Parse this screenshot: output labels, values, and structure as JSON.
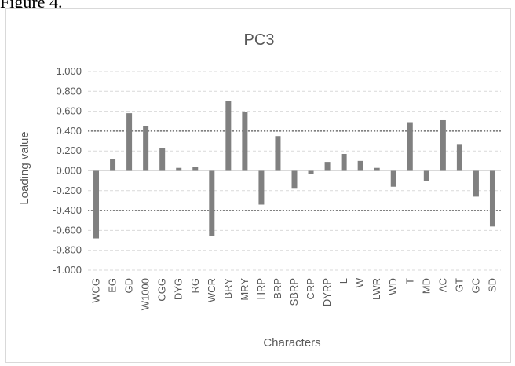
{
  "caption": "Figure 4.",
  "chart_data": {
    "type": "bar",
    "title": "PC3",
    "xlabel": "Characters",
    "ylabel": "Loading value",
    "ylim": [
      -1.0,
      1.0
    ],
    "ytick_step": 0.2,
    "yticks": [
      "1.000",
      "0.800",
      "0.600",
      "0.400",
      "0.200",
      "0.000",
      "-0.200",
      "-0.400",
      "-0.600",
      "-0.800",
      "-1.000"
    ],
    "categories": [
      "WCG",
      "EG",
      "GD",
      "W1000",
      "CGG",
      "DYG",
      "RG",
      "WCR",
      "BRY",
      "MRY",
      "HRP",
      "BRP",
      "SBRP",
      "CRP",
      "DYRP",
      "L",
      "W",
      "LWR",
      "WD",
      "T",
      "MD",
      "AC",
      "GT",
      "GC",
      "SD"
    ],
    "values": [
      -0.68,
      0.12,
      0.58,
      0.45,
      0.23,
      0.03,
      0.04,
      -0.66,
      0.7,
      0.59,
      -0.34,
      0.35,
      -0.18,
      -0.03,
      0.09,
      0.17,
      0.1,
      0.03,
      -0.16,
      0.49,
      -0.1,
      0.51,
      0.27,
      -0.26,
      -0.56
    ],
    "reference_lines": [
      0.4,
      -0.4
    ],
    "grid": true,
    "bar_color": "#808080",
    "gridline_color": "#d9d9d9",
    "reference_line_color": "#595959"
  }
}
